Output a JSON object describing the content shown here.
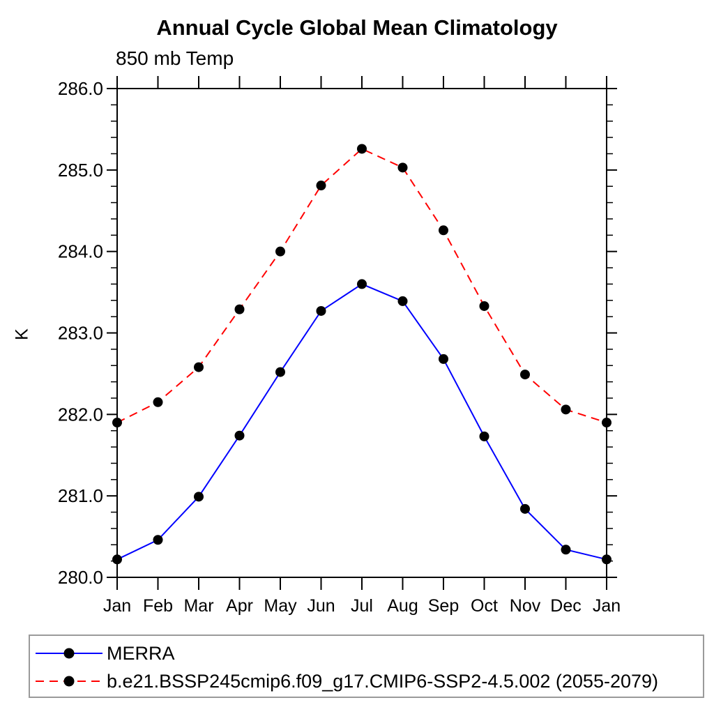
{
  "chart_data": {
    "type": "line",
    "title": "Annual Cycle Global Mean Climatology",
    "subtitle": "850 mb Temp",
    "ylabel": "K",
    "ylim": [
      280.0,
      286.0
    ],
    "y_major_step": 1.0,
    "y_minor_step": 0.2,
    "y_tick_labels": [
      "280.0",
      "281.0",
      "282.0",
      "283.0",
      "284.0",
      "285.0",
      "286.0"
    ],
    "categories": [
      "Jan",
      "Feb",
      "Mar",
      "Apr",
      "May",
      "Jun",
      "Jul",
      "Aug",
      "Sep",
      "Oct",
      "Nov",
      "Dec",
      "Jan"
    ],
    "grid": false,
    "legend_position": "bottom-left-box",
    "axis_color": "#000000",
    "background_color": "#ffffff",
    "marker": "filled-circle",
    "marker_color": "#000000",
    "series": [
      {
        "name": "MERRA",
        "color": "#0000ff",
        "line_style": "solid",
        "values": [
          280.22,
          280.46,
          280.99,
          281.74,
          282.52,
          283.27,
          283.6,
          283.39,
          282.68,
          281.73,
          280.84,
          280.34,
          280.22
        ]
      },
      {
        "name": "b.e21.BSSP245cmip6.f09_g17.CMIP6-SSP2-4.5.002 (2055-2079)",
        "color": "#ff0000",
        "line_style": "dashed",
        "values": [
          281.9,
          282.15,
          282.58,
          283.29,
          284.0,
          284.81,
          285.26,
          285.03,
          284.26,
          283.33,
          282.49,
          282.06,
          281.9
        ]
      }
    ]
  }
}
